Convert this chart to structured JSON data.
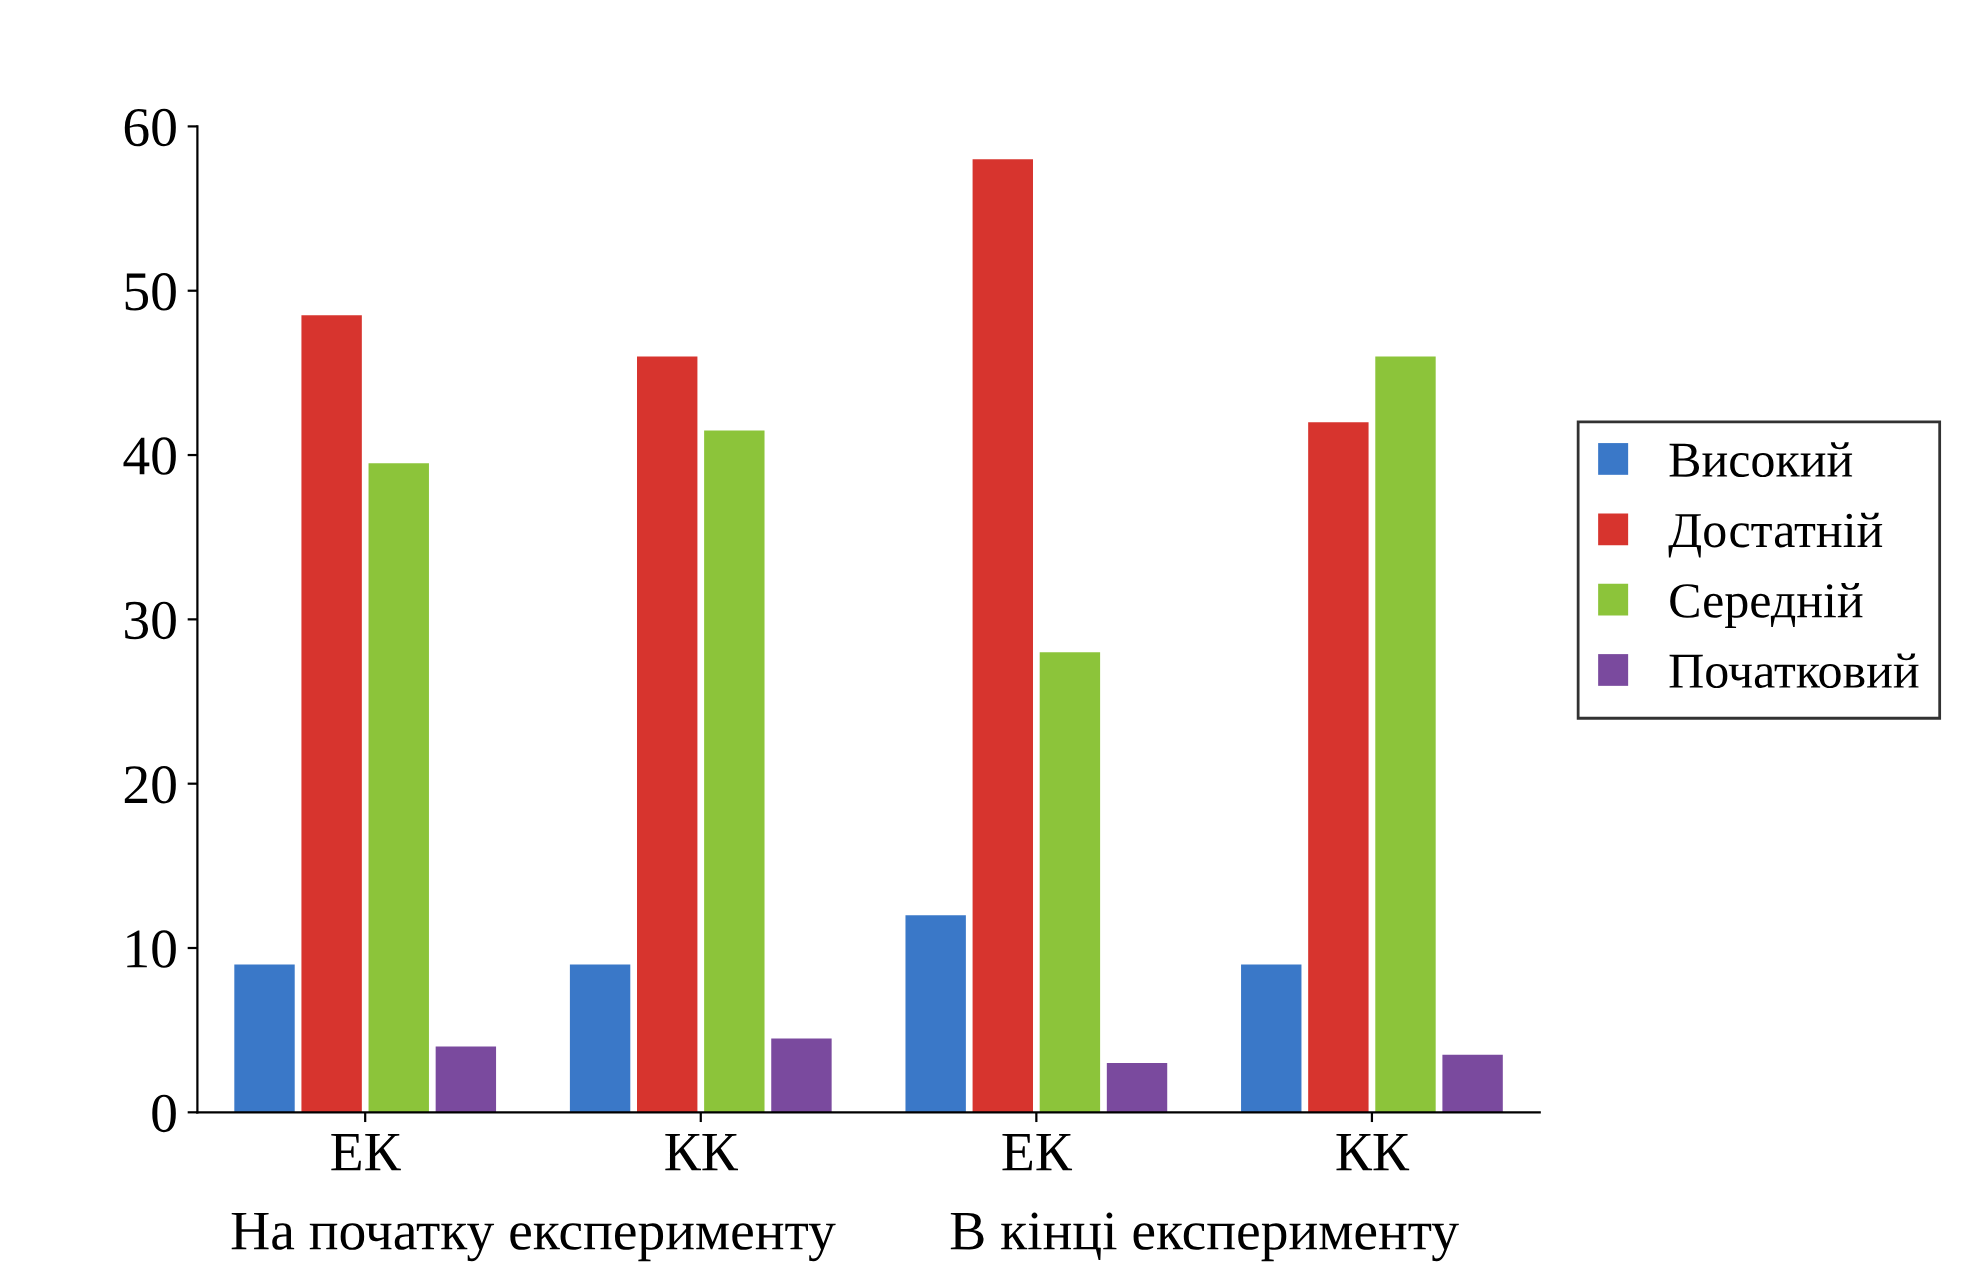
{
  "chart_data": {
    "type": "bar",
    "categories": [
      "ЕК",
      "КК",
      "ЕК",
      "КК"
    ],
    "series": [
      {
        "name": "Високий",
        "color": "#3a78c8",
        "values": [
          9,
          9,
          12,
          9
        ]
      },
      {
        "name": "Достатній",
        "color": "#d7342e",
        "values": [
          48.5,
          46,
          58,
          42
        ]
      },
      {
        "name": "Середній",
        "color": "#8cc43a",
        "values": [
          39.5,
          41.5,
          28,
          46
        ]
      },
      {
        "name": "Початковий",
        "color": "#7a4a9e",
        "values": [
          4,
          4.5,
          3,
          3.5
        ]
      }
    ],
    "ylim": [
      0,
      60
    ],
    "yticks": [
      0,
      10,
      20,
      30,
      40,
      50,
      60
    ],
    "grid": false,
    "legend": "right",
    "annotations": [
      "На початку експерименту",
      "В кінці експерименту"
    ]
  }
}
